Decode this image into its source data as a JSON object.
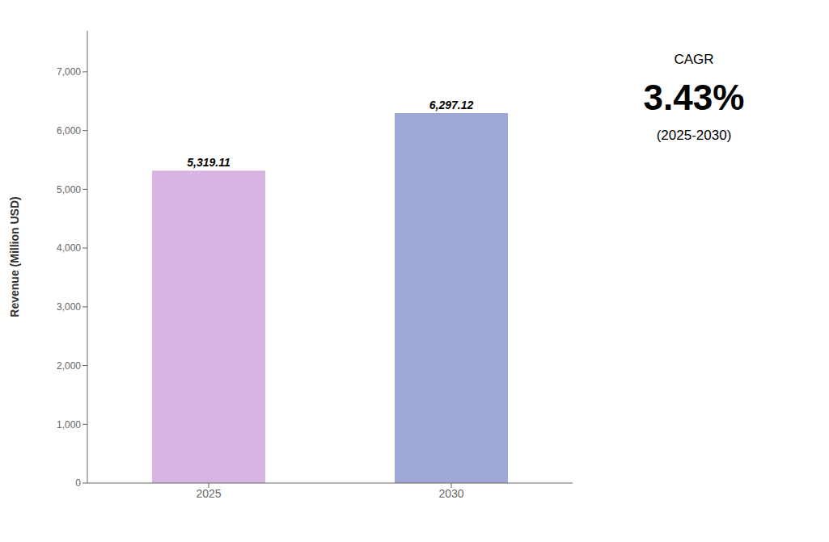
{
  "chart_data": {
    "type": "bar",
    "categories": [
      "2025",
      "2030"
    ],
    "values": [
      5319.11,
      6297.12
    ],
    "value_labels": [
      "5,319.11",
      "6,297.12"
    ],
    "data_labels": true,
    "colors": [
      "#d8b4e2",
      "#9fa8d4"
    ],
    "ylabel": "Revenue (Million USD)",
    "ylim": [
      0,
      7700
    ],
    "yticks": [
      0,
      {
        "value": 1000,
        "label": "1,000"
      },
      {
        "value": 2000,
        "label": "2,000"
      },
      {
        "value": 3000,
        "label": "3,000"
      },
      {
        "value": 4000,
        "label": "4,000"
      },
      {
        "value": 5000,
        "label": "5,000"
      },
      {
        "value": 6000,
        "label": "6,000"
      },
      {
        "value": 7000,
        "label": "7,000"
      }
    ],
    "grid": false,
    "annotations": [
      "CAGR",
      "3.43%",
      "(2025-2030)"
    ]
  }
}
